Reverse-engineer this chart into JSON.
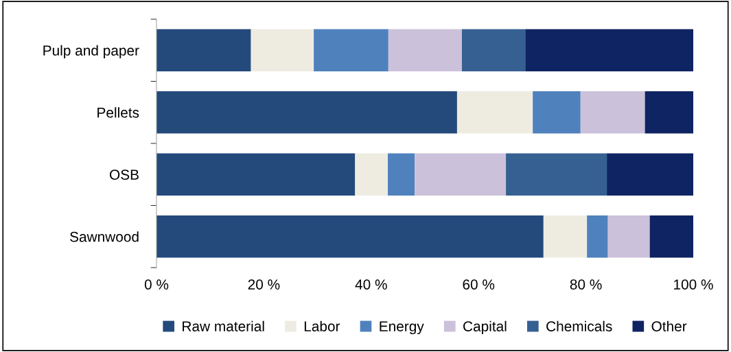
{
  "chart_data": {
    "type": "bar",
    "orientation": "horizontal",
    "stacked": true,
    "categories": [
      "Pulp and paper",
      "Pellets",
      "OSB",
      "Sawnwood"
    ],
    "series": [
      {
        "name": "Raw material",
        "color": "#244a7c",
        "values": [
          17.6,
          56,
          37,
          72.1
        ]
      },
      {
        "name": "Labor",
        "color": "#eeece1",
        "values": [
          11.7,
          14.1,
          6.1,
          8.1
        ]
      },
      {
        "name": "Energy",
        "color": "#4f81bd",
        "values": [
          13.9,
          8.9,
          5,
          3.9
        ]
      },
      {
        "name": "Capital",
        "color": "#ccc1da",
        "values": [
          13.7,
          12,
          17,
          7.8
        ]
      },
      {
        "name": "Chemicals",
        "color": "#366092",
        "values": [
          11.8,
          0,
          18.8,
          0
        ]
      },
      {
        "name": "Other",
        "color": "#0f2462",
        "values": [
          31.3,
          9,
          16.1,
          8.1
        ]
      }
    ],
    "xlim": [
      0,
      100
    ],
    "xticks": [
      {
        "value": 0,
        "label": "0 %"
      },
      {
        "value": 20,
        "label": "20 %"
      },
      {
        "value": 40,
        "label": "40 %"
      },
      {
        "value": 60,
        "label": "60 %"
      },
      {
        "value": 80,
        "label": "80 %"
      },
      {
        "value": 100,
        "label": "100 %"
      }
    ],
    "grid": false,
    "legend": "bottom"
  }
}
